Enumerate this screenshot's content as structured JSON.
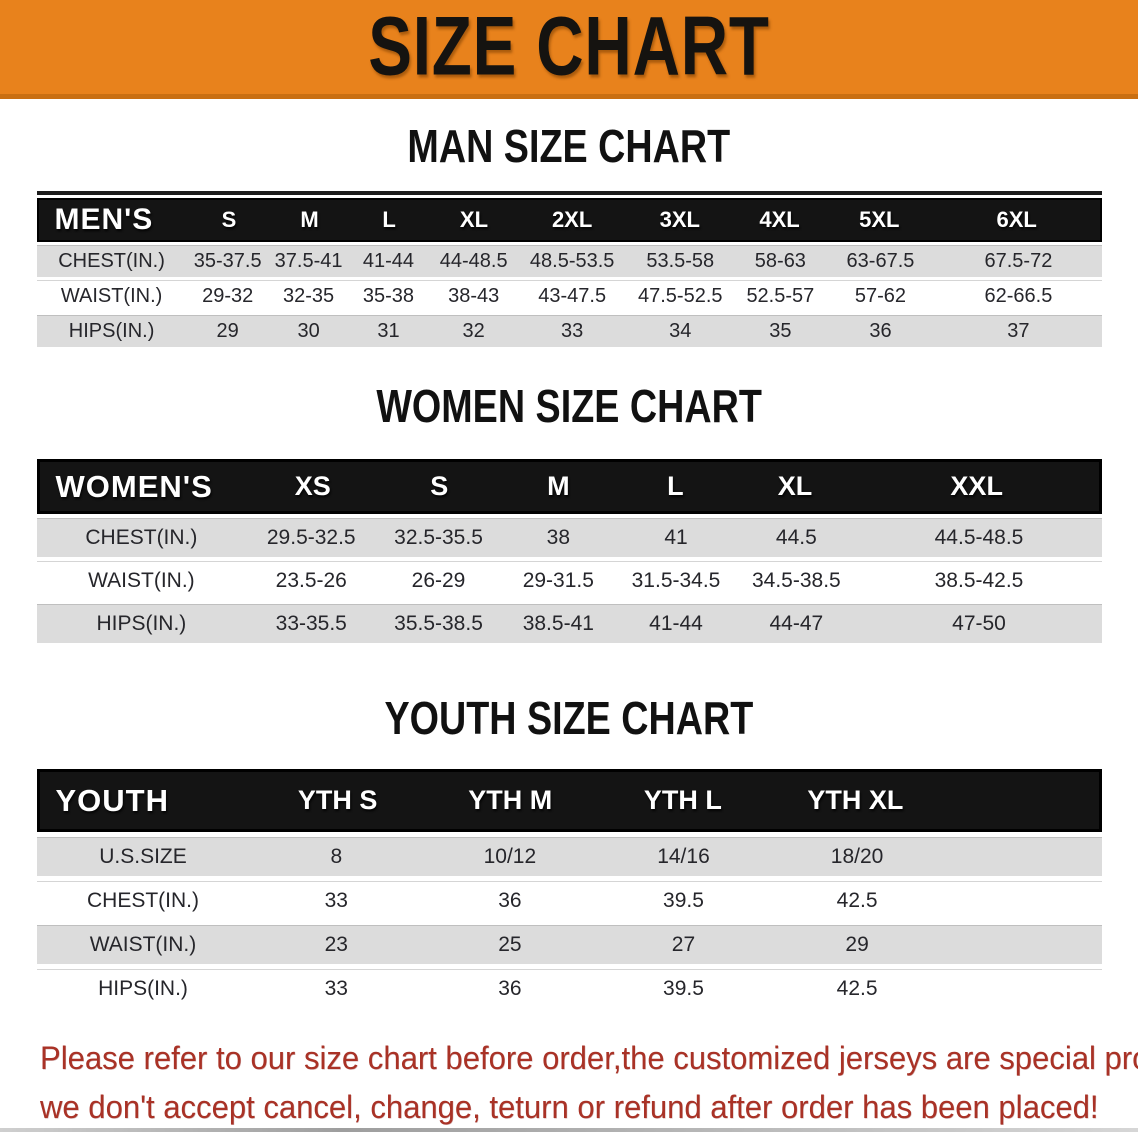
{
  "colors": {
    "banner_orange": "#e8821c",
    "header_black": "#141414",
    "row_gray": "#dcdcdc",
    "footer_red": "#a93226"
  },
  "banner": {
    "title": "SIZE CHART"
  },
  "men": {
    "heading": "MAN SIZE CHART",
    "table": {
      "label": "MEN'S",
      "columns": [
        "S",
        "M",
        "L",
        "XL",
        "2XL",
        "3XL",
        "4XL",
        "5XL",
        "6XL"
      ],
      "rows": [
        {
          "label": "CHEST(IN.)",
          "values": [
            "35-37.5",
            "37.5-41",
            "41-44",
            "44-48.5",
            "48.5-53.5",
            "53.5-58",
            "58-63",
            "63-67.5",
            "67.5-72"
          ]
        },
        {
          "label": "WAIST(IN.)",
          "values": [
            "29-32",
            "32-35",
            "35-38",
            "38-43",
            "43-47.5",
            "47.5-52.5",
            "52.5-57",
            "57-62",
            "62-66.5"
          ]
        },
        {
          "label": "HIPS(IN.)",
          "values": [
            "29",
            "30",
            "31",
            "32",
            "33",
            "34",
            "35",
            "36",
            "37"
          ]
        }
      ]
    }
  },
  "women": {
    "heading": "WOMEN SIZE CHART",
    "table": {
      "label": "WOMEN'S",
      "columns": [
        "XS",
        "S",
        "M",
        "L",
        "XL",
        "XXL"
      ],
      "rows": [
        {
          "label": "CHEST(IN.)",
          "values": [
            "29.5-32.5",
            "32.5-35.5",
            "38",
            "41",
            "44.5",
            "44.5-48.5"
          ]
        },
        {
          "label": "WAIST(IN.)",
          "values": [
            "23.5-26",
            "26-29",
            "29-31.5",
            "31.5-34.5",
            "34.5-38.5",
            "38.5-42.5"
          ]
        },
        {
          "label": "HIPS(IN.)",
          "values": [
            "33-35.5",
            "35.5-38.5",
            "38.5-41",
            "41-44",
            "44-47",
            "47-50"
          ]
        }
      ]
    }
  },
  "youth": {
    "heading": "YOUTH SIZE CHART",
    "table": {
      "label": "YOUTH",
      "columns": [
        "YTH S",
        "YTH M",
        "YTH L",
        "YTH XL"
      ],
      "rows": [
        {
          "label": "U.S.SIZE",
          "values": [
            "8",
            "10/12",
            "14/16",
            "18/20"
          ]
        },
        {
          "label": "CHEST(IN.)",
          "values": [
            "33",
            "36",
            "39.5",
            "42.5"
          ]
        },
        {
          "label": "WAIST(IN.)",
          "values": [
            "23",
            "25",
            "27",
            "29"
          ]
        },
        {
          "label": "HIPS(IN.)",
          "values": [
            "33",
            "36",
            "39.5",
            "42.5"
          ]
        }
      ]
    }
  },
  "footer": {
    "line1": "Please refer to our size chart before order,the customized jerseys are special products,",
    "line2": "we don't accept cancel, change, teturn or refund after order has been placed!"
  }
}
